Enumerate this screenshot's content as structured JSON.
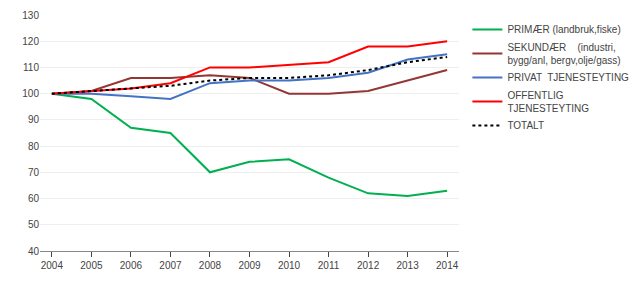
{
  "chart_data": {
    "type": "line",
    "x": [
      2004,
      2005,
      2006,
      2007,
      2008,
      2009,
      2010,
      2011,
      2012,
      2013,
      2014
    ],
    "xlim": [
      2003.7,
      2014.3
    ],
    "xticks": [
      2004,
      2005,
      2006,
      2007,
      2008,
      2009,
      2010,
      2011,
      2012,
      2013,
      2014
    ],
    "ylim": [
      40,
      130
    ],
    "yticks": [
      40,
      50,
      60,
      70,
      80,
      90,
      100,
      110,
      120,
      130
    ],
    "grid": true,
    "legend": "right",
    "series": [
      {
        "name": "PRIMÆR (landbruk,fiske)",
        "color": "#00b050",
        "line_style": "solid",
        "values": [
          100,
          98,
          87,
          85,
          70,
          74,
          75,
          68,
          62,
          61,
          63
        ]
      },
      {
        "name": "SEKUNDÆR    (industri,\nbygg/anl, bergv,olje/gass)",
        "color": "#943634",
        "line_style": "solid",
        "values": [
          100,
          101,
          106,
          106,
          107,
          106,
          100,
          100,
          101,
          105,
          109
        ]
      },
      {
        "name": "PRIVAT  TJENESTEYTING",
        "color": "#4472c4",
        "line_style": "solid",
        "values": [
          100,
          100,
          99,
          98,
          104,
          105,
          105,
          106,
          108,
          113,
          115
        ]
      },
      {
        "name": "OFFENTLIG\nTJENESTEYTING",
        "color": "#ff0000",
        "line_style": "solid",
        "values": [
          100,
          101,
          102,
          104,
          110,
          110,
          111,
          112,
          118,
          118,
          120
        ]
      },
      {
        "name": "TOTALT",
        "color": "#000000",
        "line_style": "dotted",
        "values": [
          100,
          101,
          102,
          103,
          105,
          106,
          106,
          107,
          109,
          112,
          114
        ]
      }
    ]
  }
}
